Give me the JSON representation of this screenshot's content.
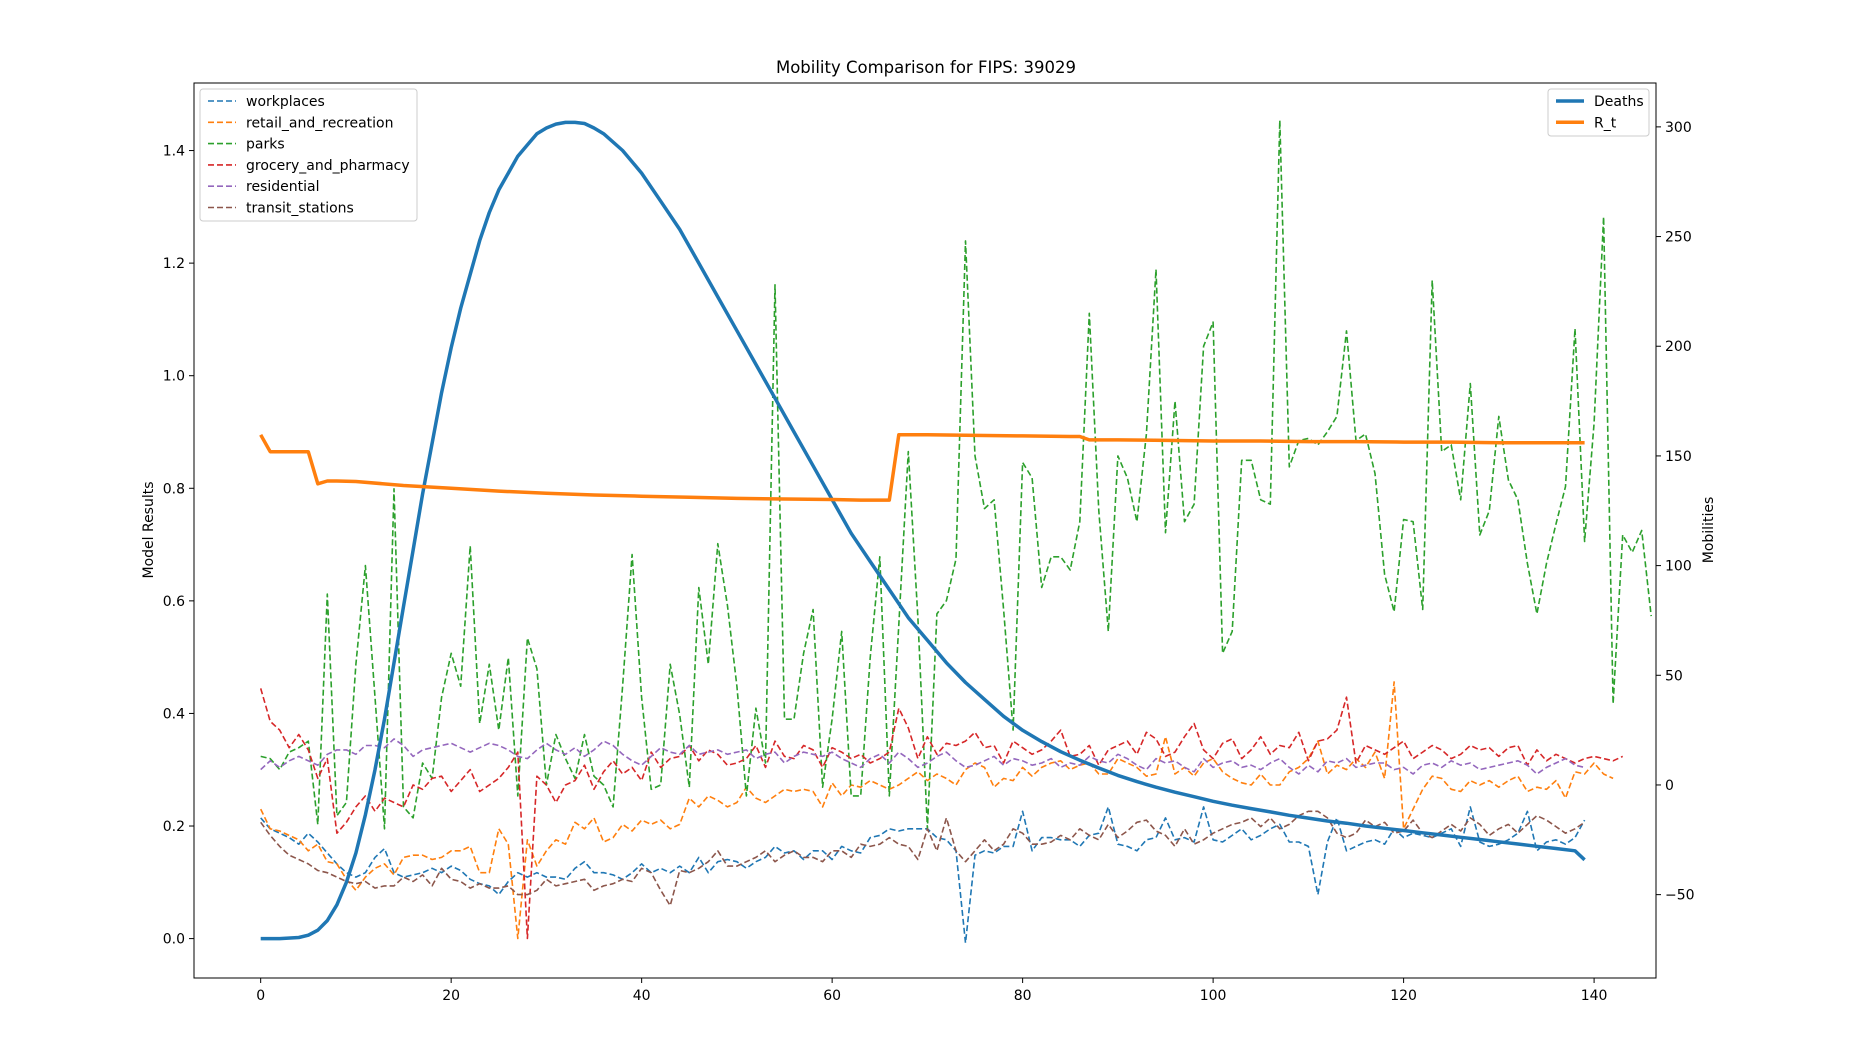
{
  "chart_data": {
    "type": "line",
    "title": "Mobility Comparison for FIPS: 39029",
    "xlabel": "",
    "ylabel": "Model Results",
    "y2label": "Mobilities",
    "xlim": [
      -7,
      146.5
    ],
    "ylim": [
      -0.07,
      1.52
    ],
    "y2lim": [
      -88,
      320
    ],
    "x_ticks": [
      0,
      20,
      40,
      60,
      80,
      100,
      120,
      140
    ],
    "y_ticks": [
      0.0,
      0.2,
      0.4,
      0.6,
      0.8,
      1.0,
      1.2,
      1.4
    ],
    "y2_ticks": [
      -50,
      0,
      50,
      100,
      150,
      200,
      250,
      300
    ],
    "legend_left_position": "upper-left",
    "legend_right_position": "upper-right",
    "grid": false,
    "colors": {
      "workplaces": "#1f77b4",
      "retail_and_recreation": "#ff7f0e",
      "parks": "#2ca02c",
      "grocery_and_pharmacy": "#d62728",
      "residential": "#9467bd",
      "transit_stations": "#8c564b",
      "Deaths": "#1f77b4",
      "R_t": "#ff7f0e"
    },
    "left_axis_series": [
      {
        "name": "Deaths",
        "style": "solid",
        "x": [
          0,
          2,
          4,
          5,
          6,
          7,
          8,
          9,
          10,
          11,
          12,
          13,
          14,
          15,
          16,
          17,
          18,
          19,
          20,
          21,
          22,
          23,
          24,
          25,
          26,
          27,
          28,
          29,
          30,
          31,
          32,
          33,
          34,
          35,
          36,
          38,
          40,
          42,
          44,
          46,
          48,
          50,
          52,
          54,
          56,
          58,
          60,
          62,
          64,
          66,
          68,
          70,
          72,
          74,
          76,
          78,
          80,
          82,
          84,
          86,
          88,
          90,
          92,
          94,
          96,
          98,
          100,
          102,
          104,
          106,
          108,
          110,
          112,
          114,
          116,
          118,
          120,
          122,
          124,
          126,
          128,
          130,
          132,
          134,
          136,
          138,
          139
        ],
        "y": [
          0,
          0,
          0.002,
          0.006,
          0.015,
          0.032,
          0.06,
          0.1,
          0.152,
          0.22,
          0.3,
          0.39,
          0.49,
          0.59,
          0.69,
          0.79,
          0.88,
          0.97,
          1.05,
          1.12,
          1.18,
          1.24,
          1.29,
          1.33,
          1.36,
          1.39,
          1.41,
          1.43,
          1.44,
          1.447,
          1.45,
          1.45,
          1.448,
          1.44,
          1.43,
          1.4,
          1.36,
          1.31,
          1.26,
          1.2,
          1.14,
          1.08,
          1.02,
          0.96,
          0.9,
          0.84,
          0.78,
          0.72,
          0.67,
          0.62,
          0.57,
          0.53,
          0.49,
          0.455,
          0.425,
          0.395,
          0.37,
          0.35,
          0.332,
          0.317,
          0.303,
          0.29,
          0.279,
          0.269,
          0.26,
          0.252,
          0.244,
          0.237,
          0.231,
          0.225,
          0.219,
          0.214,
          0.209,
          0.205,
          0.2,
          0.196,
          0.192,
          0.188,
          0.184,
          0.18,
          0.176,
          0.172,
          0.168,
          0.164,
          0.16,
          0.156,
          0.14
        ]
      },
      {
        "name": "R_t",
        "style": "solid",
        "x": [
          0,
          1,
          2,
          3,
          4,
          5,
          6,
          7,
          8,
          10,
          15,
          20,
          25,
          30,
          35,
          40,
          45,
          50,
          55,
          60,
          63,
          65,
          66,
          67,
          70,
          75,
          80,
          85,
          86,
          87,
          90,
          95,
          100,
          105,
          110,
          115,
          120,
          125,
          130,
          135,
          139
        ],
        "y": [
          0.895,
          0.865,
          0.865,
          0.865,
          0.865,
          0.865,
          0.808,
          0.813,
          0.813,
          0.812,
          0.805,
          0.8,
          0.795,
          0.791,
          0.788,
          0.786,
          0.784,
          0.782,
          0.781,
          0.78,
          0.779,
          0.779,
          0.779,
          0.895,
          0.895,
          0.894,
          0.893,
          0.892,
          0.892,
          0.886,
          0.886,
          0.885,
          0.884,
          0.884,
          0.883,
          0.883,
          0.882,
          0.882,
          0.881,
          0.881,
          0.881
        ]
      }
    ],
    "right_axis_series": [
      {
        "name": "workplaces",
        "style": "dashed",
        "y": [
          -15,
          -20,
          -22,
          -24,
          -27,
          -22,
          -26,
          -31,
          -36,
          -40,
          -42,
          -40,
          -33,
          -29,
          -40,
          -42,
          -41,
          -40,
          -38,
          -40,
          -37,
          -39,
          -43,
          -45,
          -46,
          -50,
          -44,
          -40,
          -42,
          -40,
          -42,
          -42,
          -43,
          -38,
          -35,
          -40,
          -40,
          -41,
          -43,
          -40,
          -36,
          -40,
          -38,
          -40,
          -37,
          -40,
          -33,
          -40,
          -35,
          -34,
          -35,
          -38,
          -35,
          -33,
          -28,
          -31,
          -30,
          -34,
          -30,
          -30,
          -34,
          -28,
          -30,
          -31,
          -24,
          -23,
          -20,
          -21,
          -20,
          -20,
          -20,
          -24,
          -25,
          -30,
          -72,
          -32,
          -30,
          -31,
          -28,
          -28,
          -12,
          -30,
          -24,
          -24,
          -25,
          -25,
          -28,
          -23,
          -22,
          -10,
          -27,
          -28,
          -30,
          -25,
          -24,
          -15,
          -25,
          -24,
          -26,
          -10,
          -25,
          -26,
          -23,
          -20,
          -25,
          -23,
          -20,
          -18,
          -26,
          -26,
          -28,
          -50,
          -26,
          -15,
          -30,
          -28,
          -26,
          -25,
          -27,
          -20,
          -24,
          -22,
          -23,
          -24,
          -22,
          -20,
          -28,
          -10,
          -26,
          -28,
          -27,
          -25,
          -22,
          -12,
          -30,
          -26,
          -25,
          -27,
          -24,
          -16
        ]
      },
      {
        "name": "retail_and_recreation",
        "style": "dashed",
        "y": [
          -11,
          -20,
          -21,
          -23,
          -25,
          -30,
          -27,
          -35,
          -36,
          -43,
          -48,
          -42,
          -38,
          -36,
          -41,
          -33,
          -32,
          -32,
          -34,
          -33,
          -30,
          -30,
          -28,
          -40,
          -40,
          -20,
          -27,
          -70,
          -25,
          -37,
          -30,
          -25,
          -27,
          -17,
          -20,
          -15,
          -26,
          -24,
          -18,
          -21,
          -16,
          -18,
          -16,
          -20,
          -18,
          -6,
          -10,
          -5,
          -7,
          -10,
          -8,
          -1,
          -6,
          -8,
          -5,
          -2,
          -3,
          -2,
          -3,
          -10,
          1,
          -5,
          0,
          -1,
          2,
          0,
          -2,
          0,
          3,
          6,
          2,
          5,
          3,
          0,
          7,
          10,
          8,
          -1,
          3,
          2,
          8,
          4,
          8,
          10,
          11,
          7,
          9,
          10,
          5,
          5,
          12,
          10,
          8,
          4,
          5,
          22,
          5,
          8,
          4,
          10,
          12,
          6,
          3,
          1,
          0,
          5,
          0,
          0,
          6,
          8,
          12,
          20,
          5,
          9,
          7,
          12,
          8,
          15,
          3,
          47,
          -20,
          -11,
          -2,
          4,
          3,
          -2,
          -3,
          2,
          0,
          2,
          -1,
          2,
          4,
          -3,
          -1,
          -2,
          2,
          -6,
          6,
          5,
          10,
          5,
          3
        ]
      },
      {
        "name": "parks",
        "style": "dashed",
        "y": [
          13,
          12,
          7,
          15,
          17,
          20,
          -18,
          87,
          -14,
          -8,
          55,
          100,
          40,
          -20,
          135,
          -10,
          -15,
          10,
          3,
          40,
          60,
          45,
          109,
          28,
          55,
          25,
          58,
          -5,
          67,
          53,
          0,
          23,
          12,
          3,
          23,
          4,
          0,
          -10,
          45,
          105,
          40,
          -2,
          0,
          55,
          32,
          -1,
          90,
          55,
          110,
          82,
          45,
          -5,
          35,
          10,
          228,
          30,
          30,
          60,
          80,
          -1,
          30,
          70,
          -5,
          -5,
          58,
          104,
          -5,
          73,
          152,
          76,
          -20,
          78,
          84,
          103,
          248,
          150,
          126,
          130,
          80,
          25,
          147,
          140,
          90,
          104,
          104,
          98,
          120,
          215,
          125,
          70,
          150,
          140,
          120,
          160,
          235,
          115,
          175,
          120,
          128,
          200,
          211,
          60,
          70,
          148,
          148,
          130,
          128,
          303,
          145,
          157,
          158,
          155,
          161,
          168,
          207,
          157,
          160,
          142,
          96,
          79,
          121,
          120,
          80,
          230,
          152,
          155,
          130,
          183,
          114,
          125,
          168,
          139,
          130,
          101,
          78,
          101,
          119,
          136,
          208,
          111,
          165,
          259,
          37,
          114,
          106,
          116,
          77
        ]
      },
      {
        "name": "grocery_and_pharmacy",
        "style": "dashed",
        "y": [
          44,
          29,
          25,
          17,
          23,
          16,
          3,
          12,
          -22,
          -17,
          -10,
          -5,
          -12,
          -6,
          -8,
          -10,
          0,
          -2,
          3,
          4,
          -3,
          2,
          7,
          -3,
          0,
          3,
          8,
          15,
          -70,
          4,
          0,
          -8,
          0,
          2,
          9,
          -2,
          6,
          11,
          5,
          8,
          2,
          15,
          8,
          12,
          13,
          18,
          11,
          16,
          14,
          9,
          10,
          12,
          18,
          8,
          20,
          13,
          12,
          18,
          16,
          8,
          17,
          15,
          12,
          14,
          10,
          12,
          15,
          35,
          26,
          12,
          22,
          14,
          19,
          18,
          20,
          24,
          17,
          18,
          10,
          20,
          17,
          14,
          16,
          20,
          25,
          13,
          14,
          18,
          9,
          16,
          18,
          20,
          14,
          24,
          21,
          13,
          15,
          22,
          28,
          16,
          12,
          19,
          21,
          12,
          16,
          22,
          14,
          18,
          17,
          24,
          11,
          20,
          21,
          25,
          40,
          10,
          18,
          16,
          14,
          17,
          20,
          12,
          15,
          18,
          16,
          12,
          14,
          18,
          16,
          17,
          13,
          17,
          18,
          9,
          16,
          11,
          14,
          12,
          10,
          12,
          13,
          12,
          11,
          13
        ]
      },
      {
        "name": "residential",
        "style": "dashed",
        "y": [
          7,
          11,
          8,
          11,
          13,
          11,
          9,
          14,
          16,
          16,
          14,
          18,
          18,
          17,
          21,
          18,
          13,
          16,
          17,
          18,
          19,
          17,
          15,
          17,
          19,
          18,
          16,
          13,
          12,
          16,
          19,
          16,
          14,
          17,
          13,
          16,
          20,
          18,
          14,
          11,
          9,
          13,
          17,
          15,
          14,
          18,
          14,
          15,
          16,
          14,
          15,
          16,
          12,
          14,
          15,
          10,
          13,
          15,
          14,
          13,
          15,
          12,
          10,
          8,
          12,
          14,
          10,
          15,
          12,
          8,
          10,
          13,
          15,
          11,
          8,
          9,
          11,
          13,
          9,
          12,
          11,
          9,
          10,
          12,
          8,
          10,
          9,
          13,
          11,
          10,
          14,
          12,
          9,
          7,
          12,
          10,
          11,
          8,
          6,
          12,
          8,
          10,
          11,
          8,
          9,
          7,
          10,
          12,
          8,
          5,
          9,
          6,
          11,
          10,
          12,
          8,
          9,
          10,
          10,
          7,
          8,
          5,
          9,
          10,
          8,
          11,
          9,
          10,
          7,
          8,
          9,
          10,
          11,
          9,
          5,
          8,
          10,
          12,
          9,
          8
        ]
      },
      {
        "name": "transit_stations",
        "style": "dashed",
        "y": [
          -17,
          -23,
          -28,
          -32,
          -34,
          -36,
          -39,
          -40,
          -42,
          -44,
          -45,
          -44,
          -47,
          -46,
          -46,
          -42,
          -44,
          -41,
          -46,
          -38,
          -43,
          -44,
          -47,
          -45,
          -47,
          -47,
          -46,
          -50,
          -50,
          -48,
          -43,
          -46,
          -45,
          -44,
          -43,
          -48,
          -46,
          -45,
          -43,
          -44,
          -38,
          -40,
          -48,
          -55,
          -39,
          -40,
          -38,
          -35,
          -30,
          -37,
          -37,
          -35,
          -33,
          -30,
          -35,
          -32,
          -30,
          -33,
          -33,
          -35,
          -30,
          -30,
          -33,
          -27,
          -28,
          -27,
          -24,
          -27,
          -28,
          -34,
          -20,
          -30,
          -15,
          -30,
          -35,
          -30,
          -25,
          -30,
          -27,
          -20,
          -22,
          -27,
          -27,
          -26,
          -23,
          -25,
          -20,
          -23,
          -25,
          -18,
          -24,
          -21,
          -17,
          -16,
          -21,
          -23,
          -28,
          -20,
          -27,
          -25,
          -22,
          -20,
          -18,
          -17,
          -15,
          -19,
          -15,
          -20,
          -18,
          -14,
          -12,
          -12,
          -15,
          -22,
          -24,
          -22,
          -16,
          -19,
          -17,
          -22,
          -21,
          -16,
          -22,
          -24,
          -21,
          -18,
          -21,
          -15,
          -18,
          -23,
          -20,
          -18,
          -22,
          -18,
          -14,
          -16,
          -19,
          -22,
          -20,
          -17
        ]
      }
    ]
  }
}
